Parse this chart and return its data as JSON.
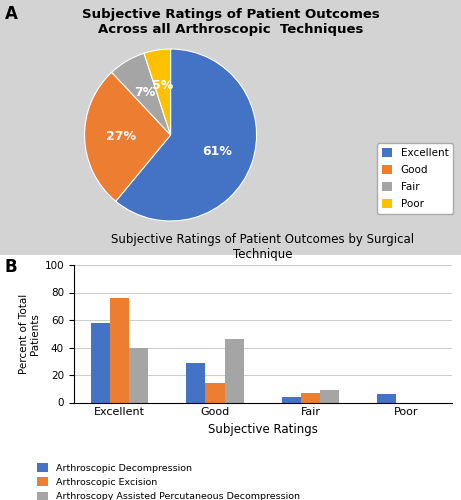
{
  "pie_labels": [
    "Excellent",
    "Good",
    "Fair",
    "Poor"
  ],
  "pie_values": [
    61,
    27,
    7,
    5
  ],
  "pie_colors": [
    "#4472C4",
    "#ED7D31",
    "#A5A5A5",
    "#FFC000"
  ],
  "pie_title": "Subjective Ratings of Patient Outcomes\nAcross all Arthroscopic  Techniques",
  "pie_label_texts": [
    "61%",
    "27%",
    "7%",
    "5%"
  ],
  "bar_categories": [
    "Excellent",
    "Good",
    "Fair",
    "Poor"
  ],
  "bar_series": {
    "Arthroscopic Decompression": [
      58,
      29,
      4,
      6
    ],
    "Arthroscopic Excision": [
      76,
      14,
      7,
      0
    ],
    "Arthroscopy Assisted Percutaneous Decompression": [
      40,
      46,
      9,
      0
    ]
  },
  "bar_colors": [
    "#4472C4",
    "#ED7D31",
    "#A5A5A5"
  ],
  "bar_title": "Subjective Ratings of Patient Outcomes by Surgical\nTechnique",
  "bar_xlabel": "Subjective Ratings",
  "bar_ylabel": "Percent of Total\nPatients",
  "bar_ylim": [
    0,
    100
  ],
  "bar_yticks": [
    0,
    20,
    40,
    60,
    80,
    100
  ],
  "background_color": "#D3D3D3",
  "panel_a_label": "A",
  "panel_b_label": "B"
}
